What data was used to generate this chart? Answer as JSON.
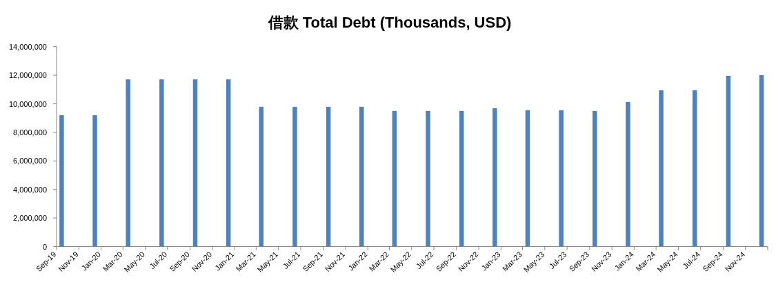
{
  "chart_data": {
    "type": "bar",
    "title": "借款 Total Debt (Thousands, USD)",
    "x": [
      "2019-09-15",
      "2019-12-15",
      "2020-03-15",
      "2020-06-15",
      "2020-09-15",
      "2020-12-15",
      "2021-03-15",
      "2021-06-15",
      "2021-09-15",
      "2021-12-15",
      "2022-03-15",
      "2022-06-15",
      "2022-09-15",
      "2022-12-15",
      "2023-03-15",
      "2023-06-15",
      "2023-09-15",
      "2023-12-15",
      "2024-03-15",
      "2024-06-15",
      "2024-09-15",
      "2024-12-15"
    ],
    "series": [
      {
        "color": "#4f81bd",
        "values": [
          9200000,
          9200000,
          11710000,
          11710000,
          11710000,
          11710000,
          9790000,
          9790000,
          9790000,
          9790000,
          9500000,
          9500000,
          9500000,
          9690000,
          9550000,
          9550000,
          9500000,
          10130000,
          10950000,
          10950000,
          11960000,
          12010000
        ]
      }
    ],
    "xlim": [
      "2019-09",
      "2025-01"
    ],
    "xticks": [
      {
        "value": "2019-09",
        "label": "Sep-19"
      },
      {
        "value": "2019-11",
        "label": "Nov-19"
      },
      {
        "value": "2020-01",
        "label": "Jan-20"
      },
      {
        "value": "2020-03",
        "label": "Mar-20"
      },
      {
        "value": "2020-05",
        "label": "May-20"
      },
      {
        "value": "2020-07",
        "label": "Jul-20"
      },
      {
        "value": "2020-09",
        "label": "Sep-20"
      },
      {
        "value": "2020-11",
        "label": "Nov-20"
      },
      {
        "value": "2021-01",
        "label": "Jan-21"
      },
      {
        "value": "2021-03",
        "label": "Mar-21"
      },
      {
        "value": "2021-05",
        "label": "May-21"
      },
      {
        "value": "2021-07",
        "label": "Jul-21"
      },
      {
        "value": "2021-09",
        "label": "Sep-21"
      },
      {
        "value": "2021-11",
        "label": "Nov-21"
      },
      {
        "value": "2022-01",
        "label": "Jan-22"
      },
      {
        "value": "2022-03",
        "label": "Mar-22"
      },
      {
        "value": "2022-05",
        "label": "May-22"
      },
      {
        "value": "2022-07",
        "label": "Jul-22"
      },
      {
        "value": "2022-09",
        "label": "Sep-22"
      },
      {
        "value": "2022-11",
        "label": "Nov-22"
      },
      {
        "value": "2023-01",
        "label": "Jan-23"
      },
      {
        "value": "2023-03",
        "label": "Mar-23"
      },
      {
        "value": "2023-05",
        "label": "May-23"
      },
      {
        "value": "2023-07",
        "label": "Jul-23"
      },
      {
        "value": "2023-09",
        "label": "Sep-23"
      },
      {
        "value": "2023-11",
        "label": "Nov-23"
      },
      {
        "value": "2024-01",
        "label": "Jan-24"
      },
      {
        "value": "2024-03",
        "label": "Mar-24"
      },
      {
        "value": "2024-05",
        "label": "May-24"
      },
      {
        "value": "2024-07",
        "label": "Jul-24"
      },
      {
        "value": "2024-09",
        "label": "Sep-24"
      },
      {
        "value": "2024-11",
        "label": "Nov-24"
      },
      {
        "value": "2025-01",
        "label": null
      }
    ],
    "ylim": [
      0,
      14000000
    ],
    "yticks": [
      {
        "value": 0,
        "label": "0"
      },
      {
        "value": 2000000,
        "label": "2,000,000"
      },
      {
        "value": 4000000,
        "label": "4,000,000"
      },
      {
        "value": 6000000,
        "label": "6,000,000"
      },
      {
        "value": 8000000,
        "label": "8,000,000"
      },
      {
        "value": 10000000,
        "label": "10,000,000"
      },
      {
        "value": 12000000,
        "label": "12,000,000"
      },
      {
        "value": 14000000,
        "label": "14,000,000"
      }
    ],
    "grid": false
  }
}
